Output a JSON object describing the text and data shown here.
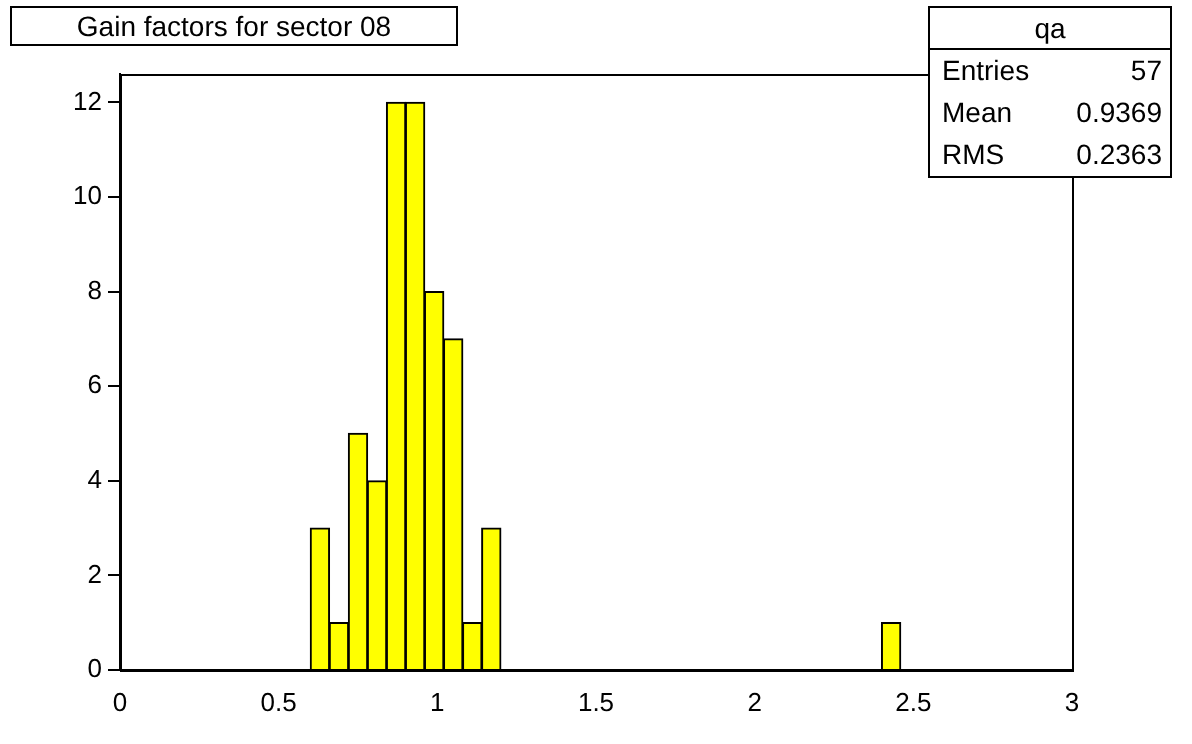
{
  "chart_data": {
    "type": "histogram",
    "title": "Gain factors for sector 08",
    "bins": [
      0.6,
      0.66,
      0.72,
      0.78,
      0.84,
      0.9,
      0.96,
      1.02,
      1.08,
      1.14,
      1.2,
      1.26,
      1.32,
      1.38,
      1.44,
      1.5,
      1.56,
      1.62,
      1.68,
      1.74,
      1.8,
      1.86,
      1.92,
      1.98,
      2.04,
      2.1,
      2.16,
      2.22,
      2.28,
      2.34,
      2.4,
      2.46
    ],
    "values": [
      3,
      1,
      5,
      4,
      12,
      12,
      8,
      7,
      1,
      3,
      0,
      0,
      0,
      0,
      0,
      0,
      0,
      0,
      0,
      0,
      0,
      0,
      0,
      0,
      0,
      0,
      0,
      0,
      0,
      0,
      1
    ],
    "color": "#ffff00",
    "xlim": [
      0,
      3
    ],
    "xticks": [
      0,
      0.5,
      1,
      1.5,
      2,
      2.5,
      3
    ],
    "ylim": [
      0,
      12.6
    ],
    "yticks": [
      0,
      2,
      4,
      6,
      8,
      10,
      12
    ],
    "grid": false,
    "legend": false,
    "annotations": [
      "qa",
      "Entries 57",
      "Mean 0.9369",
      "RMS 0.2363"
    ]
  }
}
